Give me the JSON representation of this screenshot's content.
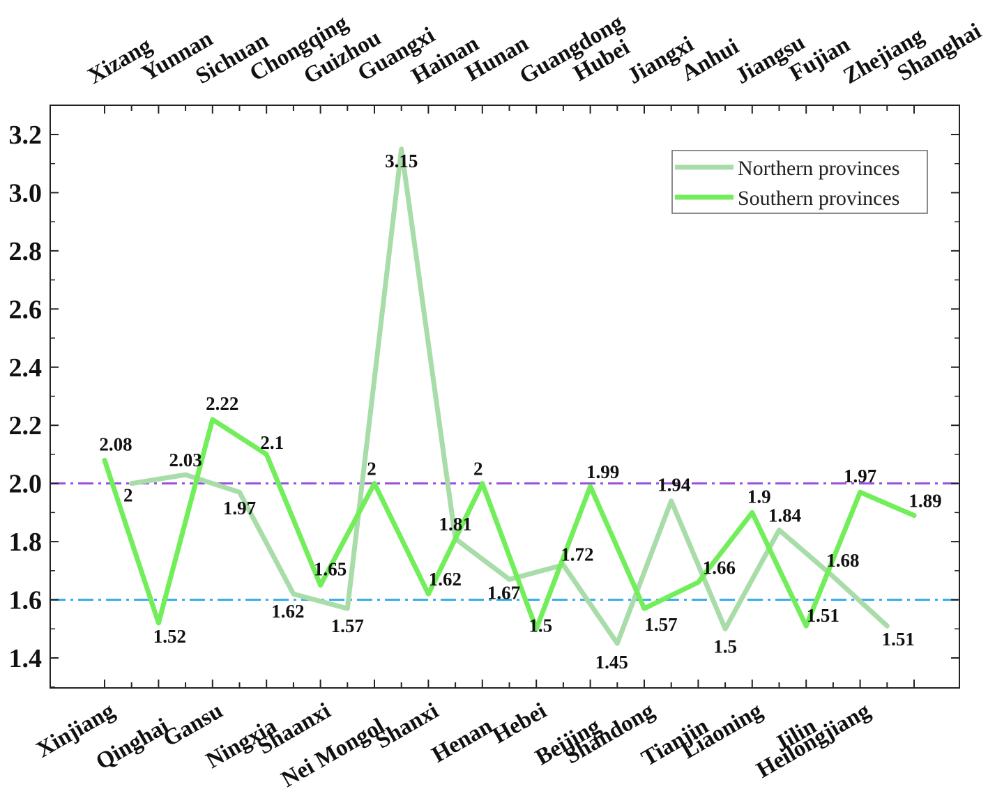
{
  "chart_data": {
    "type": "line",
    "title": "",
    "xlabel": "",
    "ylabel": "",
    "ylim": [
      1.3,
      3.3
    ],
    "yticks": [
      "1.4",
      "1.6",
      "1.8",
      "2.0",
      "2.2",
      "2.4",
      "2.6",
      "2.8",
      "3.0",
      "3.2"
    ],
    "grid": false,
    "legend_position": "top-right",
    "reference_lines": [
      {
        "y": 2.0,
        "color": "#9b4fe0",
        "style": "dash-dot"
      },
      {
        "y": 1.6,
        "color": "#3aaee8",
        "style": "dash-dot"
      }
    ],
    "series": [
      {
        "name": "Northern provinces",
        "color": "#a8dca8",
        "axis": "bottom",
        "categories": [
          "Xinjiang",
          "Qinghai",
          "Gansu",
          "Ningxia",
          "Shaanxi",
          "Nei Mongol",
          "Shanxi",
          "Henan",
          "Hebei",
          "Beijing",
          "Shandong",
          "Tianjin",
          "Liaoning",
          "Jilin",
          "Heilongjiang"
        ],
        "values": [
          2,
          2.03,
          1.97,
          1.62,
          1.57,
          3.15,
          1.81,
          1.67,
          1.72,
          1.45,
          1.94,
          1.5,
          1.84,
          1.68,
          1.51
        ],
        "labels": [
          "2",
          "2.03",
          "1.97",
          "1.62",
          "1.57",
          "3.15",
          "1.81",
          "1.67",
          "1.72",
          "1.45",
          "1.94",
          "1.5",
          "1.84",
          "1.68",
          "1.51"
        ]
      },
      {
        "name": "Southern provinces",
        "color": "#72ee5a",
        "axis": "top",
        "categories": [
          "Xizang",
          "Yunnan",
          "Sichuan",
          "Chongqing",
          "Guizhou",
          "Guangxi",
          "Hainan",
          "Hunan",
          "Guangdong",
          "Hubei",
          "Jiangxi",
          "Anhui",
          "Jiangsu",
          "Fujian",
          "Zhejiang",
          "Shanghai"
        ],
        "values": [
          2.08,
          1.52,
          2.22,
          2.1,
          1.65,
          2,
          1.62,
          2,
          1.5,
          1.99,
          1.57,
          1.66,
          1.9,
          1.51,
          1.97,
          1.89
        ],
        "labels": [
          "2.08",
          "1.52",
          "2.22",
          "2.1",
          "1.65",
          "2",
          "1.62",
          "2",
          "1.5",
          "1.99",
          "1.57",
          "1.66",
          "1.9",
          "1.51",
          "1.97",
          "1.89"
        ]
      }
    ]
  }
}
